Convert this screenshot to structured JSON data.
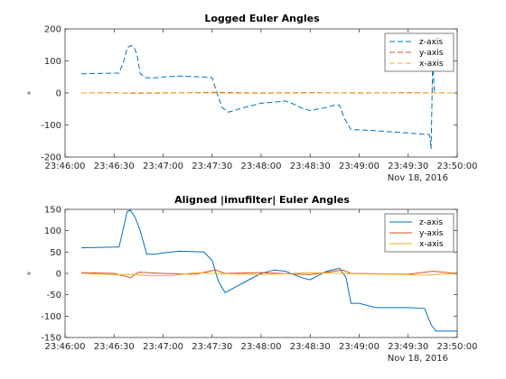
{
  "chart_data": [
    {
      "type": "line",
      "title": "Logged Euler Angles",
      "xlabel": "",
      "ylabel": "°",
      "date_label": "Nov 18, 2016",
      "xlim": [
        "23:46:00",
        "23:50:00"
      ],
      "ylim": [
        -200,
        200
      ],
      "x_ticks": [
        "23:46:00",
        "23:46:30",
        "23:47:00",
        "23:47:30",
        "23:48:00",
        "23:48:30",
        "23:49:00",
        "23:49:30",
        "23:50:00"
      ],
      "y_ticks": [
        200,
        100,
        0,
        -100,
        -200
      ],
      "legend_position": "top-right",
      "grid": false,
      "series": [
        {
          "name": "z-axis",
          "color": "#0072BD",
          "dash": "6,3",
          "x": [
            "23:46:10",
            "23:46:33",
            "23:46:36",
            "23:46:38",
            "23:46:40",
            "23:46:42",
            "23:46:44",
            "23:46:46",
            "23:46:50",
            "23:46:55",
            "23:47:00",
            "23:47:10",
            "23:47:25",
            "23:47:30",
            "23:47:33",
            "23:47:36",
            "23:47:40",
            "23:47:50",
            "23:48:00",
            "23:48:10",
            "23:48:15",
            "23:48:20",
            "23:48:25",
            "23:48:30",
            "23:48:40",
            "23:48:45",
            "23:48:48",
            "23:48:51",
            "23:48:55",
            "23:49:00",
            "23:49:10",
            "23:49:30",
            "23:49:43",
            "23:49:44",
            "23:49:45",
            "23:49:46"
          ],
          "values": [
            60,
            62,
            100,
            140,
            148,
            145,
            120,
            60,
            47,
            47,
            50,
            53,
            50,
            48,
            0,
            -45,
            -60,
            -45,
            -32,
            -28,
            -25,
            -35,
            -48,
            -55,
            -45,
            -38,
            -38,
            -80,
            -115,
            -115,
            -118,
            -125,
            -130,
            -175,
            100,
            0
          ]
        },
        {
          "name": "y-axis",
          "color": "#D95319",
          "dash": "6,3",
          "x": [
            "23:46:10",
            "23:46:30",
            "23:46:40",
            "23:47:00",
            "23:47:30",
            "23:48:00",
            "23:48:30",
            "23:49:00",
            "23:49:30",
            "23:50:00"
          ],
          "values": [
            0,
            1,
            -1,
            0,
            2,
            0,
            1,
            0,
            1,
            0
          ]
        },
        {
          "name": "x-axis",
          "color": "#EDB120",
          "dash": "6,3",
          "x": [
            "23:46:10",
            "23:46:30",
            "23:47:00",
            "23:47:30",
            "23:48:00",
            "23:48:30",
            "23:49:00",
            "23:49:30",
            "23:50:00"
          ],
          "values": [
            0,
            0,
            1,
            0,
            -1,
            0,
            1,
            0,
            0
          ]
        }
      ]
    },
    {
      "type": "line",
      "title": "Aligned |imufilter| Euler Angles",
      "xlabel": "",
      "ylabel": "°",
      "date_label": "Nov 18, 2016",
      "xlim": [
        "23:46:00",
        "23:50:00"
      ],
      "ylim": [
        -150,
        150
      ],
      "x_ticks": [
        "23:46:00",
        "23:46:30",
        "23:47:00",
        "23:47:30",
        "23:48:00",
        "23:48:30",
        "23:49:00",
        "23:49:30",
        "23:50:00"
      ],
      "y_ticks": [
        150,
        100,
        50,
        0,
        -50,
        -100,
        -150
      ],
      "legend_position": "top-right",
      "grid": false,
      "series": [
        {
          "name": "z-axis",
          "color": "#0072BD",
          "dash": "",
          "x": [
            "23:46:10",
            "23:46:33",
            "23:46:36",
            "23:46:38",
            "23:46:40",
            "23:46:43",
            "23:46:46",
            "23:46:50",
            "23:46:55",
            "23:47:00",
            "23:47:10",
            "23:47:25",
            "23:47:30",
            "23:47:34",
            "23:47:38",
            "23:47:50",
            "23:48:00",
            "23:48:08",
            "23:48:15",
            "23:48:25",
            "23:48:30",
            "23:48:40",
            "23:48:48",
            "23:48:52",
            "23:48:55",
            "23:49:00",
            "23:49:10",
            "23:49:30",
            "23:49:40",
            "23:49:44",
            "23:49:47",
            "23:50:00"
          ],
          "values": [
            60,
            62,
            110,
            145,
            148,
            130,
            100,
            45,
            45,
            48,
            52,
            50,
            30,
            -20,
            -45,
            -20,
            0,
            8,
            5,
            -10,
            -15,
            5,
            12,
            -10,
            -70,
            -70,
            -80,
            -80,
            -82,
            -120,
            -135,
            -135
          ]
        },
        {
          "name": "y-axis",
          "color": "#D95319",
          "dash": "",
          "x": [
            "23:46:10",
            "23:46:30",
            "23:46:40",
            "23:46:45",
            "23:47:00",
            "23:47:20",
            "23:47:32",
            "23:47:38",
            "23:48:00",
            "23:48:30",
            "23:48:50",
            "23:48:55",
            "23:49:30",
            "23:49:45",
            "23:50:00"
          ],
          "values": [
            2,
            0,
            -10,
            3,
            0,
            -2,
            8,
            0,
            2,
            -3,
            8,
            0,
            -2,
            5,
            0
          ]
        },
        {
          "name": "x-axis",
          "color": "#EDB120",
          "dash": "",
          "x": [
            "23:46:10",
            "23:46:30",
            "23:46:43",
            "23:46:50",
            "23:47:05",
            "23:47:20",
            "23:47:30",
            "23:48:00",
            "23:48:30",
            "23:49:00",
            "23:49:20",
            "23:49:40",
            "23:50:00"
          ],
          "values": [
            0,
            -3,
            -2,
            -6,
            -5,
            2,
            0,
            -3,
            2,
            -1,
            -2,
            -4,
            0
          ]
        }
      ]
    }
  ]
}
